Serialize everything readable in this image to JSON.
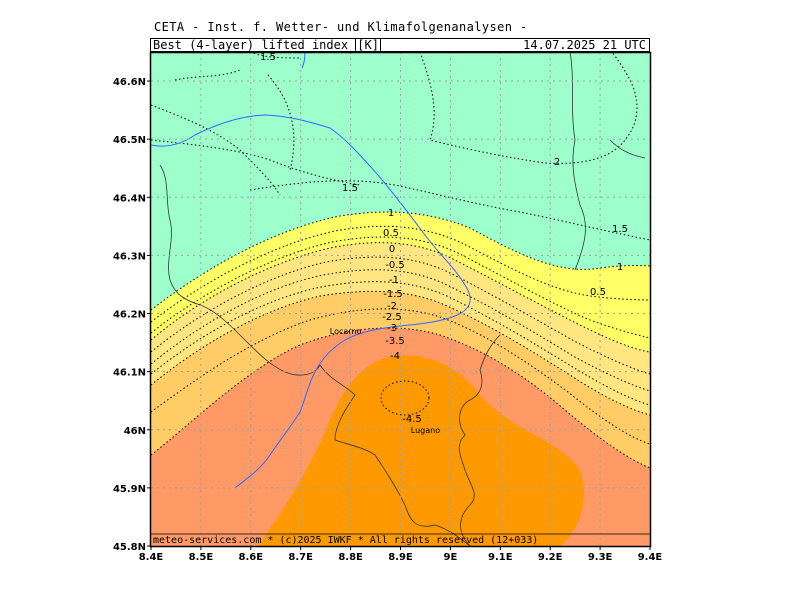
{
  "header": {
    "title": "CETA - Inst. f. Wetter- und Klimafolgenanalysen -",
    "field_name": "Best_(4-layer)_lifted_index_",
    "unit": "K",
    "datetime": "14.07.2025 21 UTC"
  },
  "map": {
    "lon_range": [
      8.4,
      9.4
    ],
    "lat_range": [
      45.8,
      46.65
    ],
    "lon_ticks": [
      "8.4E",
      "8.5E",
      "8.6E",
      "8.7E",
      "8.8E",
      "8.9E",
      "9E",
      "9.1E",
      "9.2E",
      "9.3E",
      "9.4E"
    ],
    "lat_ticks": [
      "45.8N",
      "45.9N",
      "46N",
      "46.1N",
      "46.2N",
      "46.3N",
      "46.4N",
      "46.5N",
      "46.6N"
    ],
    "contour_labels": [
      "1.5",
      "2",
      "1.5",
      "1.5",
      "1",
      "0.5",
      "0",
      "-0.5",
      "-1",
      "-1.5",
      "-2",
      "-2.5",
      "-3",
      "-3.5",
      "-4",
      "-4.5",
      "1",
      "0.5"
    ],
    "cities": [
      {
        "name": "Locarno",
        "lon": 8.79,
        "lat": 46.17
      },
      {
        "name": "Lugano",
        "lon": 8.95,
        "lat": 46.0
      }
    ],
    "colors": {
      "gt1": "#9dffcc",
      "0to1": "#ffff66",
      "m2to0": "#ffe680",
      "m3to-2": "#ffcc66",
      "m4to-3": "#ff9966",
      "lt-4": "#ff9900",
      "river": "#3366ff",
      "grid": "#a0a0a0"
    },
    "copyright": "meteo-services.com * (c)2025 IWKF * All rights reserved (12+033)"
  }
}
